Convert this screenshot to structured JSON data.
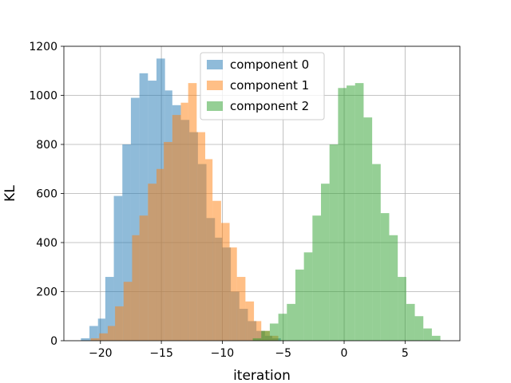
{
  "chart_data": {
    "type": "histogram",
    "title": "",
    "xlabel": "iteration",
    "ylabel": "KL",
    "xlim": [
      -23.0,
      9.5
    ],
    "ylim": [
      0,
      1200
    ],
    "xticks": [
      -20,
      -15,
      -10,
      -5,
      0,
      5
    ],
    "yticks": [
      0,
      200,
      400,
      600,
      800,
      1000,
      1200
    ],
    "grid": true,
    "legend_position": "upper-center",
    "series": [
      {
        "name": "component 0",
        "color": "#1f77b4",
        "alpha": 0.5,
        "bins": [
          [
            -21.6,
            -20.9,
            10
          ],
          [
            -20.9,
            -20.2,
            60
          ],
          [
            -20.2,
            -19.6,
            90
          ],
          [
            -19.6,
            -18.9,
            260
          ],
          [
            -18.9,
            -18.2,
            590
          ],
          [
            -18.2,
            -17.5,
            800
          ],
          [
            -17.5,
            -16.8,
            990
          ],
          [
            -16.8,
            -16.1,
            1090
          ],
          [
            -16.1,
            -15.4,
            1060
          ],
          [
            -15.4,
            -14.7,
            1150
          ],
          [
            -14.7,
            -14.1,
            1020
          ],
          [
            -14.1,
            -13.4,
            960
          ],
          [
            -13.4,
            -12.7,
            900
          ],
          [
            -12.7,
            -12.0,
            850
          ],
          [
            -12.0,
            -11.3,
            720
          ],
          [
            -11.3,
            -10.6,
            500
          ],
          [
            -10.6,
            -10.0,
            420
          ],
          [
            -10.0,
            -9.3,
            380
          ],
          [
            -9.3,
            -8.6,
            200
          ],
          [
            -8.6,
            -7.9,
            130
          ],
          [
            -7.9,
            -7.2,
            80
          ],
          [
            -7.2,
            -6.5,
            40
          ],
          [
            -6.5,
            -5.9,
            20
          ],
          [
            -5.9,
            -5.2,
            10
          ]
        ]
      },
      {
        "name": "component 1",
        "color": "#ff7f0e",
        "alpha": 0.5,
        "bins": [
          [
            -20.8,
            -20.1,
            10
          ],
          [
            -20.1,
            -19.4,
            30
          ],
          [
            -19.4,
            -18.8,
            60
          ],
          [
            -18.8,
            -18.1,
            140
          ],
          [
            -18.1,
            -17.4,
            240
          ],
          [
            -17.4,
            -16.8,
            430
          ],
          [
            -16.8,
            -16.1,
            510
          ],
          [
            -16.1,
            -15.4,
            640
          ],
          [
            -15.4,
            -14.8,
            700
          ],
          [
            -14.8,
            -14.1,
            810
          ],
          [
            -14.1,
            -13.4,
            920
          ],
          [
            -13.4,
            -12.8,
            970
          ],
          [
            -12.8,
            -12.1,
            1050
          ],
          [
            -12.1,
            -11.4,
            850
          ],
          [
            -11.4,
            -10.8,
            740
          ],
          [
            -10.8,
            -10.1,
            570
          ],
          [
            -10.1,
            -9.4,
            480
          ],
          [
            -9.4,
            -8.8,
            380
          ],
          [
            -8.8,
            -8.1,
            260
          ],
          [
            -8.1,
            -7.4,
            160
          ],
          [
            -7.4,
            -6.8,
            80
          ],
          [
            -6.8,
            -6.1,
            40
          ],
          [
            -6.1,
            -5.4,
            20
          ]
        ]
      },
      {
        "name": "component 2",
        "color": "#2ca02c",
        "alpha": 0.5,
        "bins": [
          [
            -7.5,
            -6.8,
            10
          ],
          [
            -6.8,
            -6.1,
            40
          ],
          [
            -6.1,
            -5.4,
            70
          ],
          [
            -5.4,
            -4.7,
            110
          ],
          [
            -4.7,
            -4.0,
            150
          ],
          [
            -4.0,
            -3.3,
            290
          ],
          [
            -3.3,
            -2.6,
            360
          ],
          [
            -2.6,
            -1.9,
            510
          ],
          [
            -1.9,
            -1.2,
            640
          ],
          [
            -1.2,
            -0.5,
            800
          ],
          [
            -0.5,
            0.2,
            1030
          ],
          [
            0.2,
            0.9,
            1040
          ],
          [
            0.9,
            1.6,
            1050
          ],
          [
            1.6,
            2.3,
            910
          ],
          [
            2.3,
            3.0,
            720
          ],
          [
            3.0,
            3.7,
            520
          ],
          [
            3.7,
            4.4,
            430
          ],
          [
            4.4,
            5.1,
            260
          ],
          [
            5.1,
            5.8,
            150
          ],
          [
            5.8,
            6.5,
            100
          ],
          [
            6.5,
            7.2,
            50
          ],
          [
            7.2,
            7.9,
            20
          ]
        ]
      }
    ]
  }
}
